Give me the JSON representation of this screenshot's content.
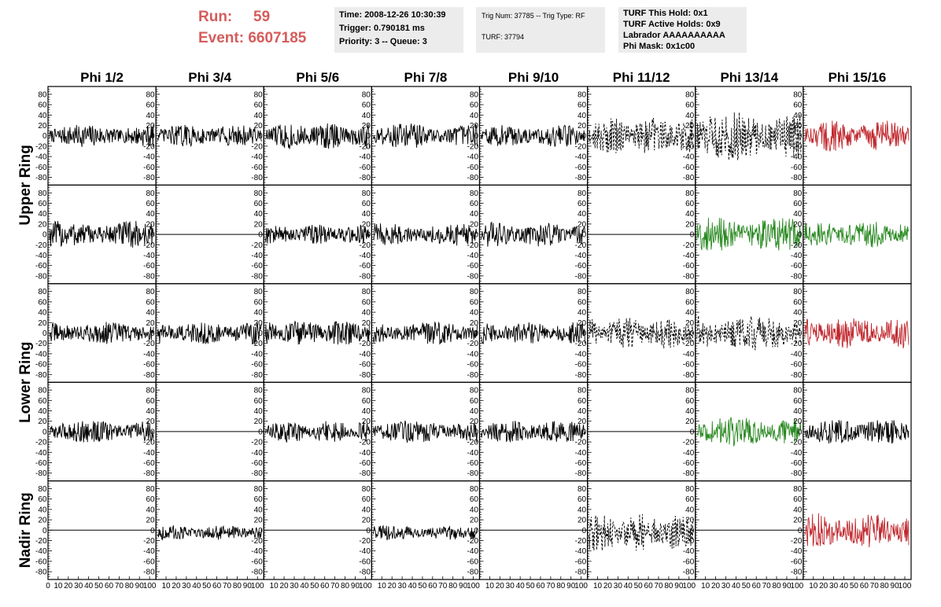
{
  "header": {
    "run_label": "Run:",
    "run_value": "59",
    "event_label": "Event:",
    "event_value": "6607185",
    "time": "Time: 2008-12-26 10:30:39",
    "trigger": "Trigger: 0.790181 ms",
    "priority": "Priority: 3 -- Queue: 3",
    "trig_num": "Trig Num: 37785 -- Trig Type: RF",
    "turf": "TURF: 37794",
    "turf_this_hold": "TURF This Hold: 0x1",
    "turf_active_holds": "TURF Active Holds: 0x9",
    "labrador": "Labrador AAAAAAAAAA",
    "phi_mask": "Phi Mask: 0x1c00"
  },
  "chart_data": {
    "type": "line",
    "columns": [
      "Phi 1/2",
      "Phi 3/4",
      "Phi 5/6",
      "Phi 7/8",
      "Phi 9/10",
      "Phi 11/12",
      "Phi 13/14",
      "Phi 15/16"
    ],
    "rows": [
      "Upper Ring",
      "Lower Ring",
      "Nadir Ring"
    ],
    "ylim": [
      -95,
      95
    ],
    "y_ticks": [
      -80,
      -60,
      -40,
      -20,
      0,
      20,
      40,
      60,
      80
    ],
    "xlim": [
      0,
      100
    ],
    "x_ticks": [
      0,
      10,
      20,
      30,
      40,
      50,
      60,
      70,
      80,
      90,
      100
    ],
    "colors": {
      "normal": "#000000",
      "red": "#c0272d",
      "green": "#2a8a22"
    },
    "panels": [
      {
        "row": 0,
        "col": 0,
        "style": "solid",
        "color": "normal",
        "amplitude": 18,
        "offset": 0
      },
      {
        "row": 0,
        "col": 1,
        "style": "solid",
        "color": "normal",
        "amplitude": 18,
        "offset": 0
      },
      {
        "row": 0,
        "col": 2,
        "style": "solid",
        "color": "normal",
        "amplitude": 22,
        "offset": 0
      },
      {
        "row": 0,
        "col": 3,
        "style": "solid",
        "color": "normal",
        "amplitude": 20,
        "offset": 0
      },
      {
        "row": 0,
        "col": 4,
        "style": "solid",
        "color": "normal",
        "amplitude": 18,
        "offset": 0
      },
      {
        "row": 0,
        "col": 5,
        "style": "dashed",
        "color": "normal",
        "amplitude": 30,
        "offset": 0
      },
      {
        "row": 0,
        "col": 6,
        "style": "dashed",
        "color": "normal",
        "amplitude": 40,
        "offset": 0
      },
      {
        "row": 0,
        "col": 7,
        "style": "solid",
        "color": "red",
        "amplitude": 25,
        "offset": 0
      },
      {
        "row": 1,
        "col": 0,
        "style": "solid",
        "color": "normal",
        "amplitude": 22,
        "offset": 0
      },
      {
        "row": 1,
        "col": 1,
        "style": "flat",
        "color": "normal",
        "amplitude": 0,
        "offset": 0
      },
      {
        "row": 1,
        "col": 2,
        "style": "solid",
        "color": "normal",
        "amplitude": 16,
        "offset": 0
      },
      {
        "row": 1,
        "col": 3,
        "style": "solid",
        "color": "normal",
        "amplitude": 18,
        "offset": 0
      },
      {
        "row": 1,
        "col": 4,
        "style": "solid",
        "color": "normal",
        "amplitude": 20,
        "offset": 0
      },
      {
        "row": 1,
        "col": 5,
        "style": "flat",
        "color": "normal",
        "amplitude": 0,
        "offset": 0
      },
      {
        "row": 1,
        "col": 6,
        "style": "solid",
        "color": "green",
        "amplitude": 28,
        "offset": 0
      },
      {
        "row": 1,
        "col": 7,
        "style": "solid",
        "color": "green",
        "amplitude": 22,
        "offset": 0
      },
      {
        "row": 2,
        "col": 0,
        "style": "solid",
        "color": "normal",
        "amplitude": 18,
        "offset": 0
      },
      {
        "row": 2,
        "col": 1,
        "style": "solid",
        "color": "normal",
        "amplitude": 18,
        "offset": 0
      },
      {
        "row": 2,
        "col": 2,
        "style": "solid",
        "color": "normal",
        "amplitude": 20,
        "offset": 0
      },
      {
        "row": 2,
        "col": 3,
        "style": "solid",
        "color": "normal",
        "amplitude": 18,
        "offset": 0
      },
      {
        "row": 2,
        "col": 4,
        "style": "solid",
        "color": "normal",
        "amplitude": 18,
        "offset": 0
      },
      {
        "row": 2,
        "col": 5,
        "style": "dashed",
        "color": "normal",
        "amplitude": 25,
        "offset": 0
      },
      {
        "row": 2,
        "col": 6,
        "style": "dashed",
        "color": "normal",
        "amplitude": 30,
        "offset": 0
      },
      {
        "row": 2,
        "col": 7,
        "style": "solid",
        "color": "red",
        "amplitude": 25,
        "offset": 0
      },
      {
        "row": 3,
        "col": 0,
        "style": "solid",
        "color": "normal",
        "amplitude": 18,
        "offset": 0
      },
      {
        "row": 3,
        "col": 1,
        "style": "flat",
        "color": "normal",
        "amplitude": 0,
        "offset": 0
      },
      {
        "row": 3,
        "col": 2,
        "style": "solid",
        "color": "normal",
        "amplitude": 18,
        "offset": 0
      },
      {
        "row": 3,
        "col": 3,
        "style": "solid",
        "color": "normal",
        "amplitude": 18,
        "offset": 0
      },
      {
        "row": 3,
        "col": 4,
        "style": "solid",
        "color": "normal",
        "amplitude": 18,
        "offset": 0
      },
      {
        "row": 3,
        "col": 5,
        "style": "flat",
        "color": "normal",
        "amplitude": 0,
        "offset": 0
      },
      {
        "row": 3,
        "col": 6,
        "style": "solid",
        "color": "green",
        "amplitude": 24,
        "offset": 0
      },
      {
        "row": 3,
        "col": 7,
        "style": "solid",
        "color": "normal",
        "amplitude": 20,
        "offset": 0
      },
      {
        "row": 4,
        "col": 0,
        "style": "flat",
        "color": "normal",
        "amplitude": 0,
        "offset": 0
      },
      {
        "row": 4,
        "col": 1,
        "style": "solid",
        "color": "normal",
        "amplitude": 12,
        "offset": -5
      },
      {
        "row": 4,
        "col": 2,
        "style": "flat",
        "color": "normal",
        "amplitude": 0,
        "offset": 0
      },
      {
        "row": 4,
        "col": 3,
        "style": "solid",
        "color": "normal",
        "amplitude": 12,
        "offset": -5
      },
      {
        "row": 4,
        "col": 4,
        "style": "flat",
        "color": "normal",
        "amplitude": 0,
        "offset": 0
      },
      {
        "row": 4,
        "col": 5,
        "style": "dashed",
        "color": "normal",
        "amplitude": 30,
        "offset": -5
      },
      {
        "row": 4,
        "col": 6,
        "style": "flat",
        "color": "normal",
        "amplitude": 0,
        "offset": 0
      },
      {
        "row": 4,
        "col": 7,
        "style": "solid",
        "color": "red",
        "amplitude": 28,
        "offset": 0
      }
    ]
  }
}
